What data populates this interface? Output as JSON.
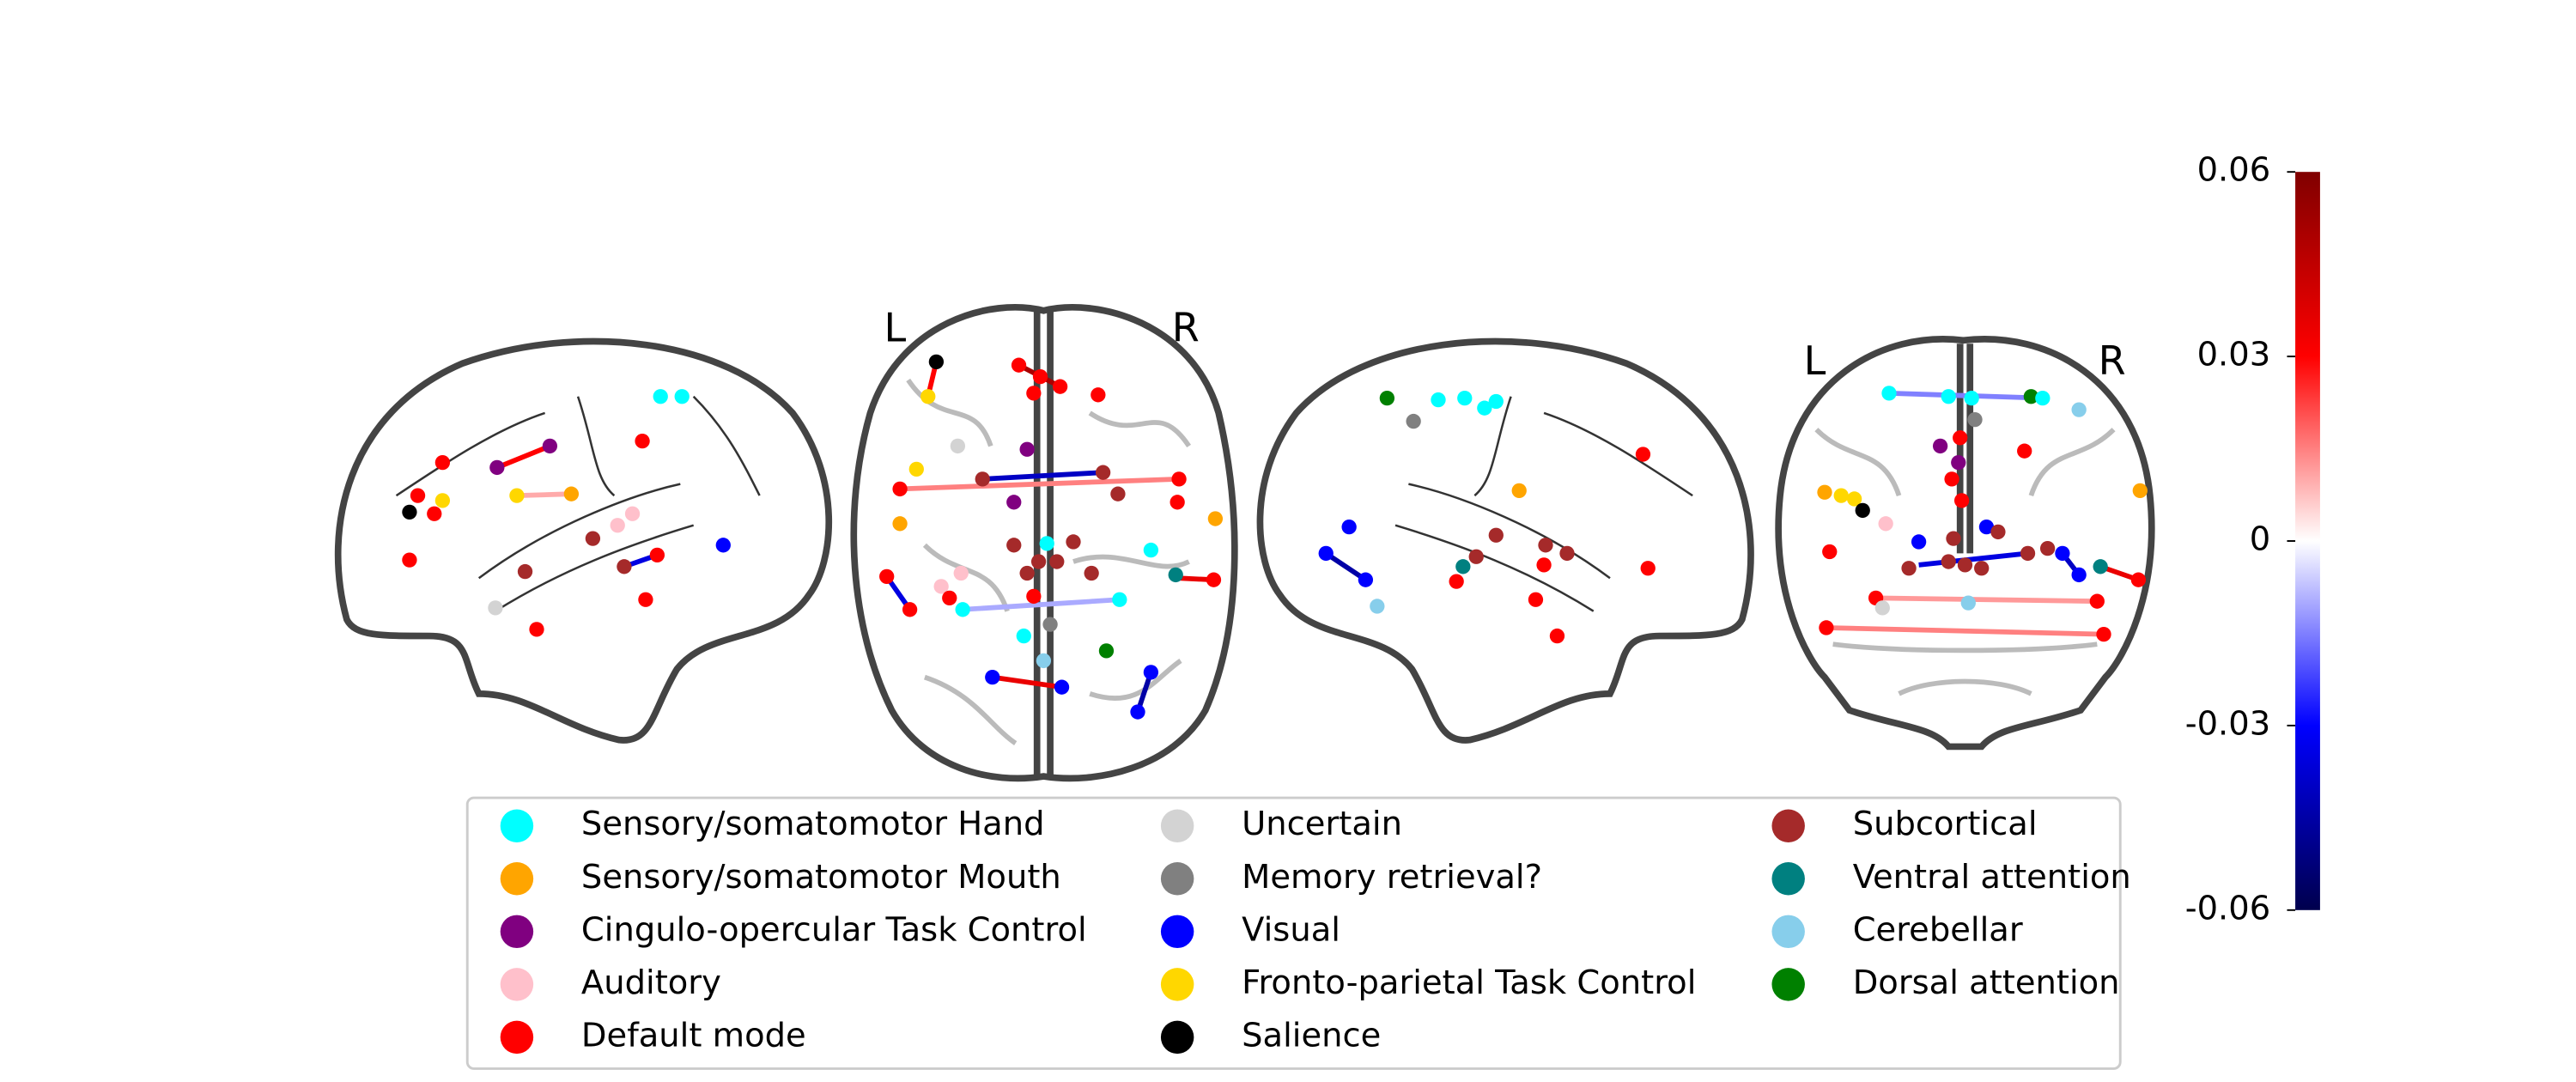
{
  "views": [
    {
      "left": "L",
      "right": "R"
    },
    {
      "left": "L",
      "right": "R"
    }
  ],
  "colorbar": {
    "lim": [
      -0.06,
      0.06
    ],
    "ticks": [
      0.06,
      0.03,
      0,
      -0.03,
      -0.06
    ],
    "colormap": "seismic"
  },
  "connections": [
    {
      "value": 0.03
    },
    {
      "value": 0.01
    },
    {
      "value": -0.035
    },
    {
      "value": 0.015
    },
    {
      "value": -0.04
    },
    {
      "value": -0.01
    },
    {
      "value": -0.035
    },
    {
      "value": 0.035
    },
    {
      "value": -0.045
    },
    {
      "value": 0.05
    },
    {
      "value": 0.03
    },
    {
      "value": 0.035
    },
    {
      "value": -0.045
    },
    {
      "value": -0.015
    },
    {
      "value": 0.015
    },
    {
      "value": -0.035
    },
    {
      "value": -0.04
    },
    {
      "value": 0.035
    },
    {
      "value": 0.012
    }
  ],
  "legend": {
    "entries": [
      {
        "label": "Sensory/somatomotor Hand",
        "color": "#00ffff"
      },
      {
        "label": "Sensory/somatomotor Mouth",
        "color": "#ffa500"
      },
      {
        "label": "Cingulo-opercular Task Control",
        "color": "#800080"
      },
      {
        "label": "Auditory",
        "color": "#ffc0cb"
      },
      {
        "label": "Default mode",
        "color": "#ff0000"
      },
      {
        "label": "Uncertain",
        "color": "#d3d3d3"
      },
      {
        "label": "Memory retrieval?",
        "color": "#808080"
      },
      {
        "label": "Visual",
        "color": "#0000ff"
      },
      {
        "label": "Fronto-parietal Task Control",
        "color": "#ffd700"
      },
      {
        "label": "Salience",
        "color": "#000000"
      },
      {
        "label": "Subcortical",
        "color": "#a52a2a"
      },
      {
        "label": "Ventral attention",
        "color": "#008080"
      },
      {
        "label": "Cerebellar",
        "color": "#87ceeb"
      },
      {
        "label": "Dorsal attention",
        "color": "#008000"
      }
    ]
  }
}
